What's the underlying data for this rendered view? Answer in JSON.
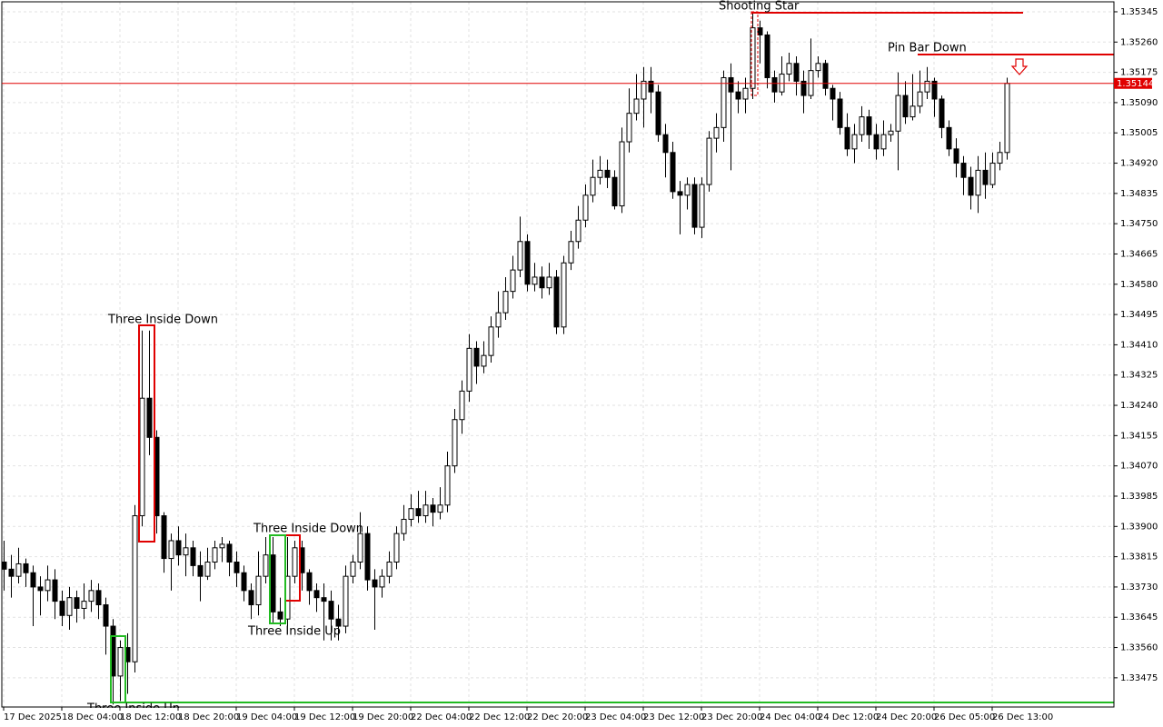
{
  "chart_data": {
    "type": "candlestick",
    "categories": [
      "17 Dec 2025",
      null,
      null,
      null,
      null,
      null,
      null,
      null,
      "18 Dec 04:00",
      null,
      null,
      null,
      null,
      null,
      null,
      null,
      "18 Dec 12:00",
      null,
      null,
      null,
      null,
      null,
      null,
      null,
      "18 Dec 20:00",
      null,
      null,
      null,
      null,
      null,
      null,
      null,
      "19 Dec 04:00",
      null,
      null,
      null,
      null,
      null,
      null,
      null,
      "19 Dec 12:00",
      null,
      null,
      null,
      null,
      null,
      null,
      null,
      "19 Dec 20:00",
      null,
      null,
      null,
      null,
      null,
      null,
      null,
      "22 Dec 04:00",
      null,
      null,
      null,
      null,
      null,
      null,
      null,
      "22 Dec 12:00",
      null,
      null,
      null,
      null,
      null,
      null,
      null,
      "22 Dec 20:00",
      null,
      null,
      null,
      null,
      null,
      null,
      null,
      "23 Dec 04:00",
      null,
      null,
      null,
      null,
      null,
      null,
      null,
      "23 Dec 12:00",
      null,
      null,
      null,
      null,
      null,
      null,
      null,
      "23 Dec 20:00",
      null,
      null,
      null,
      null,
      null,
      null,
      null,
      "24 Dec 04:00",
      null,
      null,
      null,
      null,
      null,
      null,
      null,
      "24 Dec 12:00",
      null,
      null,
      null,
      null,
      null,
      null,
      null,
      "24 Dec 20:00",
      null,
      null,
      null,
      null,
      null,
      null,
      null,
      "26 Dec 05:00",
      null,
      null,
      null,
      null,
      null,
      null,
      null,
      "26 Dec 13:00",
      null,
      null
    ],
    "open": [
      1.338,
      1.3378,
      1.3376,
      1.33795,
      1.3377,
      1.3373,
      1.3372,
      1.3375,
      1.3369,
      1.3365,
      1.337,
      1.3367,
      1.3369,
      1.3372,
      1.3368,
      1.3362,
      1.3348,
      1.3356,
      1.3352,
      1.3393,
      1.3426,
      1.3415,
      1.3393,
      1.3381,
      1.3386,
      1.3382,
      1.3384,
      1.3379,
      1.3376,
      1.338,
      1.3384,
      1.3385,
      1.338,
      1.3377,
      1.3372,
      1.3368,
      1.3376,
      1.3382,
      1.3366,
      1.3364,
      1.3376,
      1.3384,
      1.3377,
      1.3372,
      1.337,
      1.3369,
      1.3364,
      1.3362,
      1.3376,
      1.338,
      1.3388,
      1.3375,
      1.3373,
      1.3376,
      1.338,
      1.3388,
      1.3392,
      1.3395,
      1.3393,
      1.3396,
      1.3394,
      1.3396,
      1.3407,
      1.342,
      1.3428,
      1.344,
      1.3435,
      1.3438,
      1.3446,
      1.345,
      1.3456,
      1.3462,
      1.347,
      1.3458,
      1.346,
      1.3457,
      1.346,
      1.3446,
      1.3464,
      1.347,
      1.3476,
      1.3483,
      1.3488,
      1.349,
      1.3488,
      1.348,
      1.3498,
      1.3506,
      1.351,
      1.3515,
      1.3512,
      1.35,
      1.3495,
      1.3484,
      1.3483,
      1.3486,
      1.3474,
      1.3486,
      1.3499,
      1.3502,
      1.3516,
      1.3512,
      1.351,
      1.3513,
      1.353,
      1.3528,
      1.3516,
      1.3512,
      1.3517,
      1.352,
      1.3515,
      1.3511,
      1.3518,
      1.352,
      1.3513,
      1.351,
      1.3502,
      1.3496,
      1.35,
      1.3505,
      1.35,
      1.3496,
      1.35,
      1.3501,
      1.3511,
      1.3505,
      1.3508,
      1.3512,
      1.3515,
      1.351,
      1.3502,
      1.3496,
      1.3492,
      1.3488,
      1.3483,
      1.349,
      1.3486,
      1.3492,
      1.3495
    ],
    "high": [
      1.3386,
      1.3382,
      1.3384,
      1.3381,
      1.3379,
      1.3376,
      1.3379,
      1.3378,
      1.3372,
      1.3373,
      1.3372,
      1.3374,
      1.3375,
      1.3374,
      1.337,
      1.3364,
      1.3358,
      1.336,
      1.3396,
      1.3445,
      1.3445,
      1.3417,
      1.3394,
      1.3388,
      1.339,
      1.3388,
      1.3386,
      1.3383,
      1.3384,
      1.3386,
      1.3387,
      1.3386,
      1.3383,
      1.3379,
      1.3374,
      1.3383,
      1.3387,
      1.3387,
      1.337,
      1.3387,
      1.3386,
      1.3386,
      1.3378,
      1.3374,
      1.3374,
      1.3372,
      1.3368,
      1.3379,
      1.3382,
      1.3394,
      1.339,
      1.3378,
      1.3378,
      1.3383,
      1.339,
      1.3396,
      1.3399,
      1.34,
      1.34,
      1.3398,
      1.3401,
      1.3411,
      1.3423,
      1.3431,
      1.3444,
      1.3442,
      1.3442,
      1.3449,
      1.3456,
      1.346,
      1.3466,
      1.3477,
      1.3472,
      1.3464,
      1.3463,
      1.3464,
      1.3462,
      1.3466,
      1.3473,
      1.348,
      1.3486,
      1.3493,
      1.3494,
      1.3493,
      1.349,
      1.3502,
      1.3513,
      1.3517,
      1.3519,
      1.3519,
      1.3514,
      1.3503,
      1.3498,
      1.3487,
      1.3488,
      1.3488,
      1.3488,
      1.3501,
      1.3506,
      1.3518,
      1.352,
      1.3515,
      1.3516,
      1.35345,
      1.3532,
      1.3529,
      1.3518,
      1.3522,
      1.3523,
      1.3522,
      1.3518,
      1.3527,
      1.3522,
      1.3521,
      1.3514,
      1.3512,
      1.3506,
      1.3503,
      1.3508,
      1.3507,
      1.3503,
      1.3504,
      1.3503,
      1.35175,
      1.3515,
      1.3517,
      1.3518,
      1.3519,
      1.3516,
      1.3511,
      1.3504,
      1.3499,
      1.3494,
      1.3491,
      1.3494,
      1.3495,
      1.3495,
      1.3498,
      1.3516
    ],
    "low": [
      1.3372,
      1.337,
      1.3374,
      1.3373,
      1.3362,
      1.3365,
      1.3369,
      1.3364,
      1.3362,
      1.3361,
      1.3363,
      1.3364,
      1.3366,
      1.3364,
      1.3354,
      1.334,
      1.3341,
      1.3343,
      1.3349,
      1.339,
      1.341,
      1.3388,
      1.3377,
      1.3372,
      1.3379,
      1.3376,
      1.3376,
      1.3369,
      1.3375,
      1.3378,
      1.338,
      1.3376,
      1.3373,
      1.3369,
      1.3364,
      1.3365,
      1.3374,
      1.3363,
      1.3362,
      1.3362,
      1.3374,
      1.3372,
      1.3368,
      1.3366,
      1.3358,
      1.3358,
      1.3358,
      1.336,
      1.3374,
      1.3378,
      1.3372,
      1.3361,
      1.337,
      1.3374,
      1.3378,
      1.3386,
      1.339,
      1.3391,
      1.3391,
      1.339,
      1.3392,
      1.3394,
      1.3405,
      1.3416,
      1.3425,
      1.343,
      1.3433,
      1.3436,
      1.3443,
      1.3448,
      1.3454,
      1.346,
      1.3456,
      1.3456,
      1.3454,
      1.3455,
      1.3444,
      1.3444,
      1.3462,
      1.3468,
      1.3474,
      1.3481,
      1.3486,
      1.3485,
      1.3479,
      1.3478,
      1.3495,
      1.3504,
      1.3502,
      1.3506,
      1.3498,
      1.3488,
      1.3482,
      1.3472,
      1.3479,
      1.3472,
      1.3471,
      1.3484,
      1.3495,
      1.3498,
      1.349,
      1.3506,
      1.3506,
      1.351,
      1.352,
      1.3513,
      1.3509,
      1.3511,
      1.3515,
      1.3511,
      1.3506,
      1.351,
      1.3516,
      1.3511,
      1.3504,
      1.35,
      1.3494,
      1.3492,
      1.3498,
      1.3496,
      1.3493,
      1.3494,
      1.3498,
      1.349,
      1.3503,
      1.3504,
      1.3506,
      1.351,
      1.3505,
      1.3499,
      1.3494,
      1.3488,
      1.3483,
      1.3479,
      1.3478,
      1.3482,
      1.3485,
      1.349,
      1.3493
    ],
    "close": [
      1.3378,
      1.3376,
      1.33795,
      1.3377,
      1.3373,
      1.3372,
      1.3375,
      1.3369,
      1.3365,
      1.337,
      1.3367,
      1.3369,
      1.3372,
      1.3368,
      1.3362,
      1.3348,
      1.3356,
      1.3352,
      1.3393,
      1.3426,
      1.3415,
      1.3393,
      1.3381,
      1.3386,
      1.3382,
      1.3384,
      1.3379,
      1.3376,
      1.338,
      1.3384,
      1.3385,
      1.338,
      1.3377,
      1.3372,
      1.3368,
      1.3376,
      1.3382,
      1.3366,
      1.3364,
      1.3376,
      1.3384,
      1.3377,
      1.3372,
      1.337,
      1.3369,
      1.3364,
      1.3362,
      1.3376,
      1.338,
      1.3388,
      1.3375,
      1.3373,
      1.3376,
      1.338,
      1.3388,
      1.3392,
      1.3395,
      1.3393,
      1.3396,
      1.3394,
      1.3396,
      1.3407,
      1.342,
      1.3428,
      1.344,
      1.3435,
      1.3438,
      1.3446,
      1.345,
      1.3456,
      1.3462,
      1.347,
      1.3458,
      1.346,
      1.3457,
      1.346,
      1.3446,
      1.3464,
      1.347,
      1.3476,
      1.3483,
      1.3488,
      1.349,
      1.3488,
      1.348,
      1.3498,
      1.3506,
      1.351,
      1.3515,
      1.3512,
      1.35,
      1.3495,
      1.3484,
      1.3483,
      1.3486,
      1.3474,
      1.3486,
      1.3499,
      1.3502,
      1.3516,
      1.3512,
      1.351,
      1.3513,
      1.353,
      1.3528,
      1.3516,
      1.3512,
      1.3517,
      1.352,
      1.3515,
      1.3511,
      1.3518,
      1.352,
      1.3513,
      1.351,
      1.3502,
      1.3496,
      1.35,
      1.3505,
      1.35,
      1.3496,
      1.35,
      1.3501,
      1.3511,
      1.3505,
      1.3508,
      1.3512,
      1.3515,
      1.351,
      1.3502,
      1.3496,
      1.3492,
      1.3488,
      1.3483,
      1.349,
      1.3486,
      1.3492,
      1.3495,
      1.35144
    ],
    "up_color": "#ffffff",
    "down_color": "#000000",
    "price_line_color": "#e00000",
    "ylim": [
      1.33393,
      1.35373
    ],
    "yticks": [
      1.35345,
      {
        "value": 1.3526,
        "label": "1.35260"
      },
      1.35175,
      {
        "value": 1.3509,
        "label": "1.35090"
      },
      1.35005,
      {
        "value": 1.3492,
        "label": "1.34920"
      },
      1.34835,
      {
        "value": 1.3475,
        "label": "1.34750"
      },
      1.34665,
      {
        "value": 1.3458,
        "label": "1.34580"
      },
      1.34495,
      {
        "value": 1.3441,
        "label": "1.34410"
      },
      1.34325,
      {
        "value": 1.3424,
        "label": "1.34240"
      },
      1.34155,
      {
        "value": 1.3407,
        "label": "1.34070"
      },
      1.33985,
      {
        "value": 1.339,
        "label": "1.33900"
      },
      1.33815,
      {
        "value": 1.3373,
        "label": "1.33730"
      },
      1.33645,
      {
        "value": 1.3356,
        "label": "1.33560"
      },
      1.33475
    ],
    "grid": true,
    "annotations": [
      {
        "text": "Three Inside Down",
        "color": "#e00000"
      },
      {
        "text": "Three Inside Down",
        "color": "#e00000"
      },
      {
        "text": "Three Inside Up",
        "color": "#22bb22"
      },
      {
        "text": "Three Inside Up",
        "color": "#22bb22"
      },
      {
        "text": "Shooting Star",
        "color": "#e00000"
      },
      {
        "text": "Pin Bar Down",
        "color": "#e00000"
      }
    ]
  }
}
